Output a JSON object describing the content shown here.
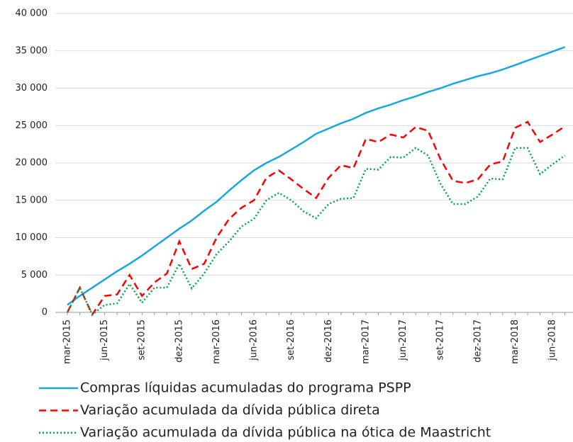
{
  "chart_data": {
    "type": "line",
    "categories": [
      "mar-2015",
      null,
      null,
      "jun-2015",
      null,
      null,
      "set-2015",
      null,
      null,
      "dez-2015",
      null,
      null,
      "mar-2016",
      null,
      null,
      "jun-2016",
      null,
      null,
      "set-2016",
      null,
      null,
      "dez-2016",
      null,
      null,
      "mar-2017",
      null,
      null,
      "jun-2017",
      null,
      null,
      "set-2017",
      null,
      null,
      "dez-2017",
      null,
      null,
      "mar-2018",
      null,
      null,
      "jun-2018",
      null
    ],
    "series": [
      {
        "name": "Compras líquidas acumuladas do programa PSPP",
        "color": "#1aa7e0",
        "style": "solid",
        "values": [
          1000,
          2200,
          3300,
          4400,
          5500,
          6500,
          7600,
          8800,
          10000,
          11200,
          12300,
          13600,
          14800,
          16300,
          17700,
          19000,
          20000,
          20800,
          21800,
          22800,
          23900,
          24600,
          25300,
          25900,
          26700,
          27300,
          27800,
          28400,
          28900,
          29500,
          30000,
          30600,
          31100,
          31600,
          32000,
          32500,
          33100,
          33700,
          34300,
          34900,
          35500
        ]
      },
      {
        "name": "Variação acumulada da dívida pública direta",
        "color": "#ff0000",
        "style": "dashed",
        "values": [
          0,
          3300,
          -300,
          2200,
          2400,
          5000,
          2200,
          4000,
          5200,
          9500,
          5800,
          6500,
          10000,
          12500,
          14000,
          15000,
          18000,
          19000,
          17800,
          16500,
          15300,
          18000,
          19700,
          19300,
          23200,
          22800,
          23800,
          23400,
          24800,
          24300,
          20500,
          17600,
          17300,
          17800,
          19800,
          20200,
          24700,
          25500,
          22800,
          23800,
          24900
        ]
      },
      {
        "name": "Variação acumulada da dívida pública na ótica de Maastricht",
        "color": "#00a64f",
        "style": "dotted",
        "values": [
          0,
          3300,
          -300,
          1000,
          1200,
          3800,
          1300,
          3300,
          3300,
          6500,
          3200,
          5200,
          7800,
          9500,
          11500,
          12500,
          15000,
          16000,
          15000,
          13500,
          12600,
          14500,
          15200,
          15300,
          19200,
          19100,
          20800,
          20700,
          22000,
          21000,
          17200,
          14500,
          14500,
          15500,
          17900,
          17800,
          22000,
          22000,
          18500,
          19800,
          21000
        ]
      }
    ],
    "ylim": [
      0,
      40000
    ],
    "yticks": [
      0,
      {
        "value": 5000,
        "label": "5 000"
      },
      {
        "value": 10000,
        "label": "10 000"
      },
      {
        "value": 15000,
        "label": "15 000"
      },
      {
        "value": 20000,
        "label": "20 000"
      },
      {
        "value": 25000,
        "label": "25 000"
      },
      {
        "value": 30000,
        "label": "30 000"
      },
      {
        "value": 35000,
        "label": "35 000"
      },
      {
        "value": 40000,
        "label": "40 000"
      }
    ],
    "grid": true,
    "legend": "bottom"
  }
}
